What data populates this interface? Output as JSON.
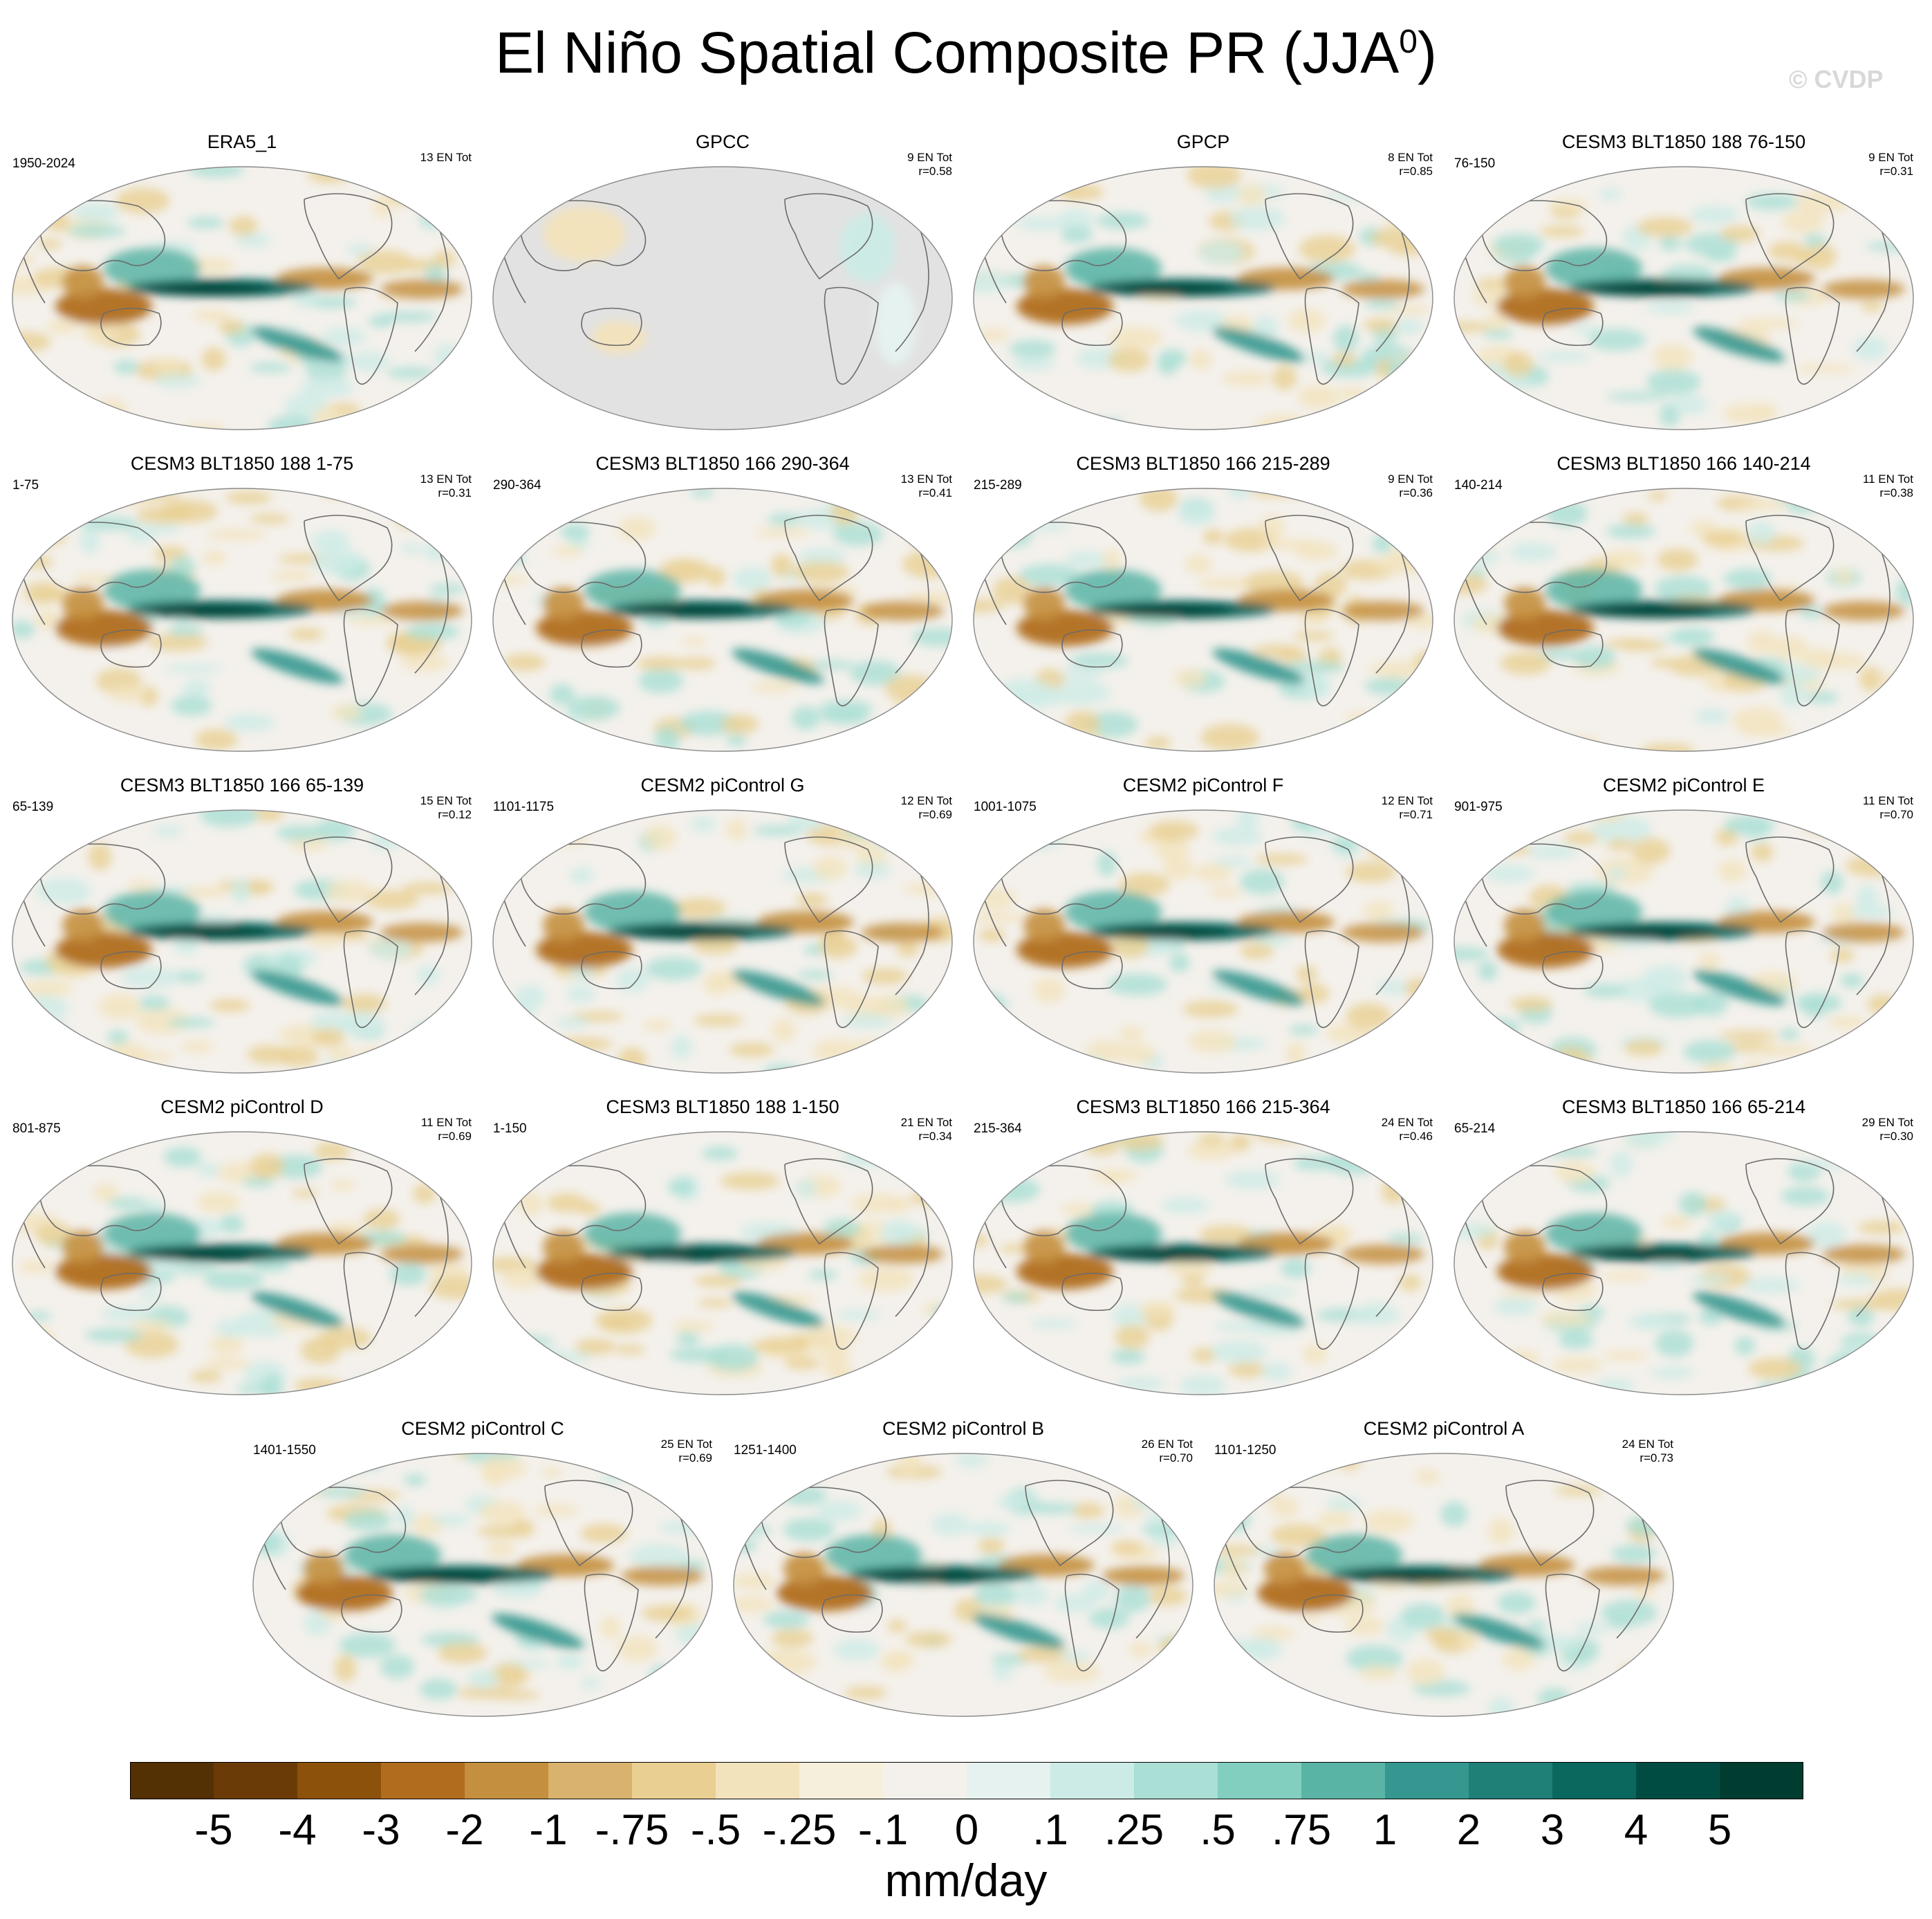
{
  "title": {
    "main": "El Niño Spatial Composite PR (JJA",
    "superscript": "0",
    "close": ")"
  },
  "watermark": "© CVDP",
  "units": "mm/day",
  "colors": {
    "land_missing": "#e2e2e2",
    "coast": "#6b6b6b",
    "palette": [
      "#543005",
      "#6b3b07",
      "#8c510a",
      "#b06d1e",
      "#c48f3e",
      "#d9b26d",
      "#e9cf92",
      "#f3e3bd",
      "#f6efdc",
      "#f4f1ec",
      "#e6f2f0",
      "#cdebe6",
      "#a9dfd5",
      "#82cfbf",
      "#5ab4a6",
      "#35978f",
      "#1f8078",
      "#0a685e",
      "#014c42",
      "#003c30"
    ]
  },
  "colorbar": {
    "labels": [
      "-5",
      "-4",
      "-3",
      "-2",
      "-1",
      "-.75",
      "-.5",
      "-.25",
      "-.1",
      "0",
      ".1",
      ".25",
      ".5",
      ".75",
      "1",
      "2",
      "3",
      "4",
      "5"
    ]
  },
  "panels": [
    {
      "title": "ERA5_1",
      "period": "1950-2024",
      "count": "13 EN Tot",
      "corr": "",
      "gray": false
    },
    {
      "title": "GPCC",
      "period": "",
      "count": "9 EN Tot",
      "corr": "r=0.58",
      "gray": true
    },
    {
      "title": "GPCP",
      "period": "",
      "count": "8 EN Tot",
      "corr": "r=0.85",
      "gray": false
    },
    {
      "title": "CESM3 BLT1850 188 76-150",
      "period": "76-150",
      "count": "9 EN Tot",
      "corr": "r=0.31",
      "gray": false
    },
    {
      "title": "CESM3 BLT1850 188 1-75",
      "period": "1-75",
      "count": "13 EN Tot",
      "corr": "r=0.31",
      "gray": false
    },
    {
      "title": "CESM3 BLT1850 166 290-364",
      "period": "290-364",
      "count": "13 EN Tot",
      "corr": "r=0.41",
      "gray": false
    },
    {
      "title": "CESM3 BLT1850 166 215-289",
      "period": "215-289",
      "count": "9 EN Tot",
      "corr": "r=0.36",
      "gray": false
    },
    {
      "title": "CESM3 BLT1850 166 140-214",
      "period": "140-214",
      "count": "11 EN Tot",
      "corr": "r=0.38",
      "gray": false
    },
    {
      "title": "CESM3 BLT1850 166 65-139",
      "period": "65-139",
      "count": "15 EN Tot",
      "corr": "r=0.12",
      "gray": false
    },
    {
      "title": "CESM2 piControl G",
      "period": "1101-1175",
      "count": "12 EN Tot",
      "corr": "r=0.69",
      "gray": false
    },
    {
      "title": "CESM2 piControl F",
      "period": "1001-1075",
      "count": "12 EN Tot",
      "corr": "r=0.71",
      "gray": false
    },
    {
      "title": "CESM2 piControl E",
      "period": "901-975",
      "count": "11 EN Tot",
      "corr": "r=0.70",
      "gray": false
    },
    {
      "title": "CESM2 piControl D",
      "period": "801-875",
      "count": "11 EN Tot",
      "corr": "r=0.69",
      "gray": false
    },
    {
      "title": "CESM3 BLT1850 188 1-150",
      "period": "1-150",
      "count": "21 EN Tot",
      "corr": "r=0.34",
      "gray": false
    },
    {
      "title": "CESM3 BLT1850 166 215-364",
      "period": "215-364",
      "count": "24 EN Tot",
      "corr": "r=0.46",
      "gray": false
    },
    {
      "title": "CESM3 BLT1850 166 65-214",
      "period": "65-214",
      "count": "29 EN Tot",
      "corr": "r=0.30",
      "gray": false
    },
    {
      "title": "CESM2 piControl C",
      "period": "1401-1550",
      "count": "25 EN Tot",
      "corr": "r=0.69",
      "gray": false
    },
    {
      "title": "CESM2 piControl B",
      "period": "1251-1400",
      "count": "26 EN Tot",
      "corr": "r=0.70",
      "gray": false
    },
    {
      "title": "CESM2 piControl A",
      "period": "1101-1250",
      "count": "24 EN Tot",
      "corr": "r=0.73",
      "gray": false
    }
  ]
}
